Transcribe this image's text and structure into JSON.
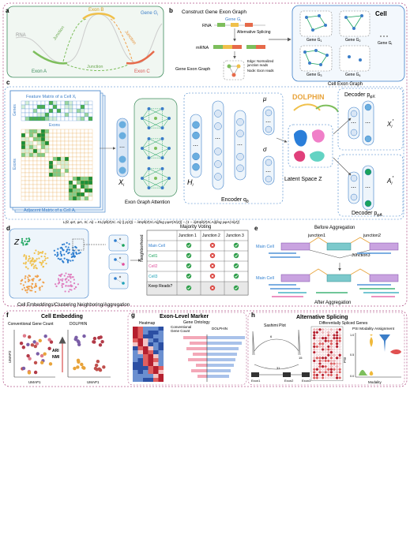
{
  "panel_letters": {
    "a": "a",
    "b": "b",
    "c": "c",
    "d": "d",
    "e": "e",
    "f": "f",
    "g": "g",
    "h": "h"
  },
  "panel_a": {
    "exon_b": "Exon B",
    "gene": "Gene G",
    "gene_sub": "i",
    "rna": "RNA",
    "junction_left": "Junction",
    "junction_right": "Junction",
    "junction_bottom": "Junction",
    "exon_a": "Exon A",
    "exon_c": "Exon C"
  },
  "panel_b": {
    "title": "Construct Gene Exon Graph",
    "gene": "Gene G",
    "gene_sub": "i",
    "rna": "RNA",
    "alt_splicing": "Alternative Splicing",
    "mrna": "mRNA",
    "gene_exon_graph": "Gene Exon Graph",
    "edge_legend_1": "Edge: Normalized",
    "edge_legend_2": "junction reads",
    "node_legend": "Node: Exon reads",
    "cell": "Cell",
    "gene_labels": [
      "Gene G",
      "Gene G",
      "Gene G",
      "Gene G",
      "Gene G"
    ],
    "gene_subs": [
      "1",
      "2",
      "i",
      "3",
      "4"
    ],
    "cell_exon_graph": "Cell Exon Graph"
  },
  "panel_c": {
    "feature_matrix": "Feature Matrix of a Cell X",
    "feature_sub": "i",
    "genes": "Genes",
    "exons_top": "Exons",
    "exons_side": "Exons",
    "adjacent_matrix": "Adjacent Matrix of a Cell A",
    "adjacent_sub": "i",
    "xi": "X",
    "xi_sub": "i",
    "exon_graph_attention": "Exon Graph Attention",
    "hi": "H",
    "hi_sub": "i",
    "mu": "μ",
    "sigma": "σ",
    "encoder": "Encoder q",
    "encoder_sub": "θ",
    "dolphin": "DOLPHIN",
    "latent_space": "Latent Space Z",
    "decoder_x": "Decoder p",
    "decoder_x_sub": "φX",
    "decoder_a": "Decoder p",
    "decoder_a_sub": "φA",
    "xi_prime": "X",
    "xi_prime_sub": "i",
    "xi_prime_mark": "′",
    "ai_prime": "A",
    "ai_prime_sub": "i",
    "ai_prime_mark": "′",
    "loss": "L(θ, φX, φA, Xi, Ai) = KL(qθ(Z|Xi, Ai) || p(Z)) − λEqθ(Z|Xi,Ai)[log pφX(Xi|Z)] − (1 − λ)Eqθ(Z|Xi,Ai)[log pφA(Ai|Z)]"
  },
  "panel_d": {
    "z": "Z",
    "majority_voting": "Majority Voting",
    "neighborhood": "Neighborhood",
    "columns": [
      "Junction 1",
      "Junction 2",
      "Junction 3"
    ],
    "rows": [
      {
        "label": "Main Cell",
        "color": "#2f7fd0",
        "marks": [
          "check",
          "cross",
          "check"
        ]
      },
      {
        "label": "Cell1",
        "color": "#1aa35c",
        "marks": [
          "check",
          "cross",
          "check"
        ]
      },
      {
        "label": "Cell2",
        "color": "#e0509c",
        "marks": [
          "check",
          "cross",
          "check"
        ]
      },
      {
        "label": "Cell3",
        "color": "#21a3b8",
        "marks": [
          "check",
          "cross",
          "check"
        ]
      }
    ],
    "keep_reads": "Keep Reads?",
    "keep_marks": [
      "check",
      "cross",
      "check"
    ],
    "caption": "Cell Embeddings/Clustering  Neighboring/Aggregation"
  },
  "panel_e": {
    "before": "Before Aggregation",
    "junction1": "junction1",
    "junction2": "junction2",
    "junction3": "Junction3",
    "main_cell_1": "Main Cell",
    "main_cell_2": "Main Cell",
    "after": "After Aggregation"
  },
  "panel_f": {
    "title": "Cell Embedding",
    "left_title": "Conventional Gene Count",
    "right_title": "DOLPHIN",
    "umap2": "UMAP2",
    "umap1": "UMAP1",
    "ari": "ARI",
    "nmi": "NMI"
  },
  "panel_g": {
    "title": "Exon-Level Marker",
    "heatmap": "Heatmap",
    "gene_ontology": "Gene Ontology",
    "conventional": "Conventional",
    "gene_count": "Gene Count",
    "dolphin": "DOLPHIN"
  },
  "panel_h": {
    "title": "Alternative Splicing",
    "sashimi": "Sashimi Plot",
    "dsg": "Differentially Spliced Genes",
    "psi": "PSI Modality Assignment",
    "exon1": "Exon1",
    "exon2": "Exon2",
    "exon3": "Exon3",
    "psi_axis": "PSI",
    "modality": "Modality",
    "sashimi_counts": [
      "6",
      "15",
      "31"
    ],
    "psi_ticks": [
      "1.0",
      "0.5",
      "0.0"
    ]
  },
  "colors": {
    "accent": "#2f7fd0",
    "purple": "#9b59b6",
    "green": "#1aa35c",
    "orange": "#e67e22",
    "pink": "#e0509c",
    "teal": "#21a3b8"
  }
}
